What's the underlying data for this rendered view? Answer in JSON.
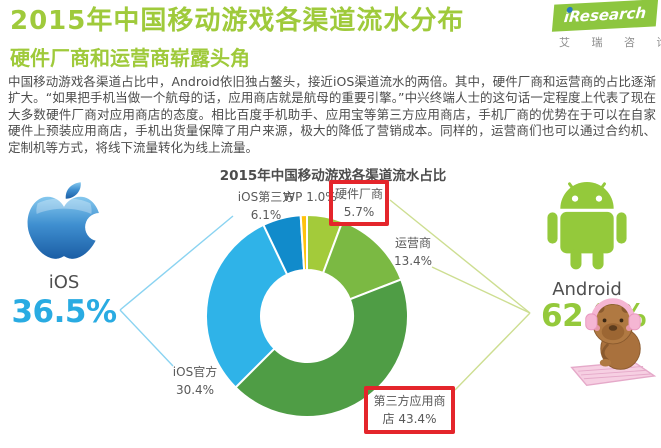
{
  "header": {
    "title": "2015年中国移动游戏各渠道流水分布",
    "subtitle": "硬件厂商和运营商崭露头角",
    "logo": {
      "brand": "iResearch",
      "caption": "艾 瑞 咨 询"
    }
  },
  "body_text": "中国移动游戏各渠道占比中，Android依旧独占鳌头，接近iOS渠道流水的两倍。其中，硬件厂商和运营商的占比逐渐扩大。“如果把手机当做一个航母的话，应用商店就是航母的重要引擎。”中兴终端人士的这句话一定程度上代表了现在大多数硬件厂商对应用商店的态度。相比百度手机助手、应用宝等第三方应用商店，手机厂商的优势在于可以在自家硬件上预装应用商店，手机出货量保障了用户来源，极大的降低了营销成本。同样的，运营商们也可以通过合约机、定制机等方式，将线下流量转化为线上流量。",
  "chart_data": {
    "type": "pie",
    "variant": "donut",
    "title": "2015年中国移动游戏各渠道流水占比",
    "unit": "%",
    "start_angle_deg": 0,
    "direction": "clockwise",
    "segments": [
      {
        "label": "硬件厂商",
        "value": 5.7,
        "color": "#a3cb3a",
        "highlighted": true
      },
      {
        "label": "运营商",
        "value": 13.4,
        "color": "#7bb943",
        "highlighted": false
      },
      {
        "label": "第三方应用商店",
        "value": 43.4,
        "color": "#4f9d45",
        "highlighted": true
      },
      {
        "label": "iOS官方",
        "value": 30.4,
        "color": "#2fb3e8",
        "highlighted": false
      },
      {
        "label": "iOS第三方",
        "value": 6.1,
        "color": "#118bcb",
        "highlighted": false
      },
      {
        "label": "WP",
        "value": 1.0,
        "color": "#ffc20e",
        "highlighted": false
      }
    ],
    "totals": {
      "ios": 36.5,
      "android": 62.5
    },
    "legend_position": "around-slices",
    "grid": false
  },
  "slice_labels": {
    "ios_third": [
      "iOS第三方",
      "6.1%"
    ],
    "wp": [
      "WP 1.0%"
    ],
    "hardware": [
      "硬件厂商",
      "5.7%"
    ],
    "operator": [
      "运营商",
      "13.4%"
    ],
    "ios_official": [
      "iOS官方",
      "30.4%"
    ],
    "third_party": [
      "第三方应用商",
      "店 43.4%"
    ]
  },
  "platforms": {
    "ios": {
      "name": "iOS",
      "share": "36.5%"
    },
    "android": {
      "name": "Android",
      "share": "62.5%"
    }
  },
  "icons": {
    "apple": "apple-ios-logo",
    "android": "android-robot-logo",
    "capybara": "capybara-headphones-keyboard-sticker",
    "logo_dot": "iresearch-blue-dot"
  },
  "colors": {
    "title_green": "#9fca3b",
    "logo_green": "#8dc63f",
    "logo_dot_blue": "#2679bd",
    "text_dark": "#4c4c4c",
    "label_gray": "#595959",
    "highlight_red": "#e4252b",
    "ios_blue": "#29abe2",
    "android_green": "#94c93b",
    "leader_cyan": "#8ad3f1",
    "leader_green": "#cdde91"
  }
}
